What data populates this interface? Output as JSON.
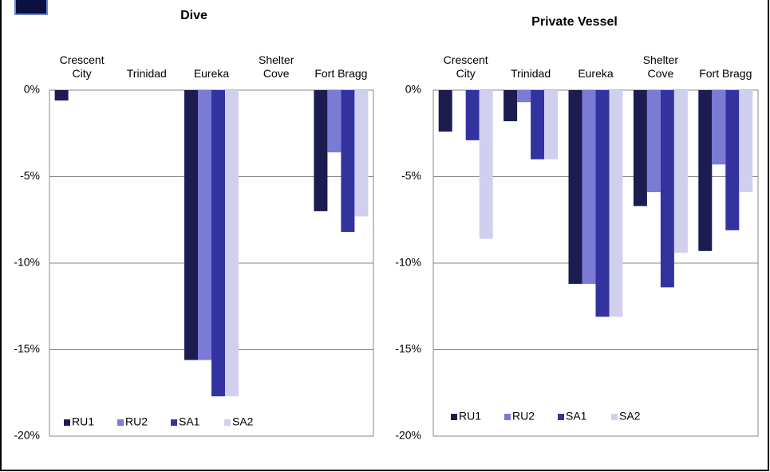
{
  "chart_data": [
    {
      "type": "bar",
      "title": "Dive",
      "categories": [
        "Crescent City",
        "Trinidad",
        "Eureka",
        "Shelter Cove",
        "Fort Bragg"
      ],
      "series": [
        {
          "name": "RU1",
          "color": "#1c1c50",
          "values": [
            -0.6,
            null,
            -15.6,
            null,
            -7.0
          ]
        },
        {
          "name": "RU2",
          "color": "#7b7bd6",
          "values": [
            null,
            null,
            -15.6,
            null,
            -3.6
          ]
        },
        {
          "name": "SA1",
          "color": "#3333a0",
          "values": [
            null,
            null,
            -17.7,
            null,
            -8.2
          ]
        },
        {
          "name": "SA2",
          "color": "#d0d0ee",
          "values": [
            null,
            null,
            -17.7,
            null,
            -7.3
          ]
        }
      ],
      "ylim": [
        -20,
        0
      ],
      "yticks": [
        {
          "value": 0,
          "label": "0%"
        },
        {
          "value": -5,
          "label": "-5%"
        },
        {
          "value": -10,
          "label": "-10%"
        },
        {
          "value": -15,
          "label": "-15%"
        },
        {
          "value": -20,
          "label": "-20%"
        }
      ],
      "grid": true,
      "legend": "bottom-left"
    },
    {
      "type": "bar",
      "title": "Private Vessel",
      "categories": [
        "Crescent City",
        "Trinidad",
        "Eureka",
        "Shelter Cove",
        "Fort Bragg"
      ],
      "series": [
        {
          "name": "RU1",
          "color": "#1c1c50",
          "values": [
            -2.4,
            -1.8,
            -11.2,
            -6.7,
            -9.3
          ]
        },
        {
          "name": "RU2",
          "color": "#7b7bd6",
          "values": [
            null,
            -0.7,
            -11.2,
            -5.9,
            -4.3
          ]
        },
        {
          "name": "SA1",
          "color": "#3333a0",
          "values": [
            -2.9,
            -4.0,
            -13.1,
            -11.4,
            -8.1
          ]
        },
        {
          "name": "SA2",
          "color": "#d0d0ee",
          "values": [
            -8.6,
            -4.0,
            -13.1,
            -9.4,
            -5.9
          ]
        }
      ],
      "ylim": [
        -20,
        0
      ],
      "yticks": [
        {
          "value": 0,
          "label": "0%"
        },
        {
          "value": -5,
          "label": "-5%"
        },
        {
          "value": -10,
          "label": "-10%"
        },
        {
          "value": -15,
          "label": "-15%"
        },
        {
          "value": -20,
          "label": "-20%"
        }
      ],
      "grid": true,
      "legend": "bottom-left"
    }
  ]
}
